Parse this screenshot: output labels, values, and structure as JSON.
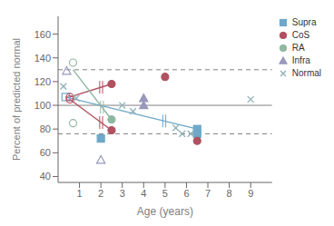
{
  "chart_data": {
    "type": "scatter",
    "xlabel": "Age (years)",
    "ylabel": "Percent of predicted normal",
    "xlim": [
      0,
      10
    ],
    "ylim": [
      35,
      175
    ],
    "xticks": [
      1,
      2,
      3,
      4,
      5,
      6,
      7,
      8,
      9
    ],
    "yticks": [
      40,
      60,
      80,
      100,
      120,
      140,
      160
    ],
    "legend": "upper right",
    "reference_lines": [
      {
        "y": 100,
        "color": "#808080",
        "line_style": "solid"
      },
      {
        "y": 130,
        "color": "#808080",
        "line_style": "dashed"
      },
      {
        "y": 76,
        "color": "#808080",
        "line_style": "dashed"
      }
    ],
    "series": [
      {
        "name": "Supra",
        "color": "#6fa8c8",
        "marker": "square",
        "open_points": [
          [
            0.35,
            107
          ]
        ],
        "closed_points": [
          [
            2.0,
            72
          ],
          [
            6.5,
            80
          ],
          [
            6.5,
            76
          ]
        ],
        "lines": [
          [
            [
              0.35,
              107
            ],
            [
              6.5,
              80
            ]
          ]
        ]
      },
      {
        "name": "CoS",
        "color": "#b05060",
        "marker": "circle",
        "open_points": [
          [
            0.55,
            107
          ],
          [
            0.55,
            105
          ]
        ],
        "closed_points": [
          [
            2.5,
            118
          ],
          [
            2.5,
            79
          ],
          [
            5.0,
            124
          ],
          [
            6.5,
            70
          ]
        ],
        "lines": [
          [
            [
              0.55,
              107
            ],
            [
              2.5,
              118
            ]
          ],
          [
            [
              0.55,
              105
            ],
            [
              2.5,
              79
            ]
          ]
        ]
      },
      {
        "name": "RA",
        "color": "#90b8a0",
        "marker": "circle",
        "open_points": [
          [
            0.7,
            136
          ],
          [
            0.7,
            85
          ]
        ],
        "closed_points": [
          [
            2.5,
            88
          ]
        ],
        "lines": [
          [
            [
              0.7,
              130
            ],
            [
              2.5,
              88
            ]
          ]
        ]
      },
      {
        "name": "Infra",
        "color": "#9898bc",
        "marker": "triangle",
        "open_points": [
          [
            0.4,
            129
          ],
          [
            2.0,
            54
          ]
        ],
        "closed_points": [
          [
            4.0,
            106
          ],
          [
            4.0,
            100
          ]
        ]
      },
      {
        "name": "Normal",
        "color": "#90b0b8",
        "marker": "x",
        "closed_points": [
          [
            0.25,
            116
          ],
          [
            0.85,
            106
          ],
          [
            3.0,
            100
          ],
          [
            3.5,
            95
          ],
          [
            5.5,
            81
          ],
          [
            5.8,
            76
          ],
          [
            6.2,
            76
          ],
          [
            9.0,
            105
          ]
        ]
      }
    ]
  }
}
